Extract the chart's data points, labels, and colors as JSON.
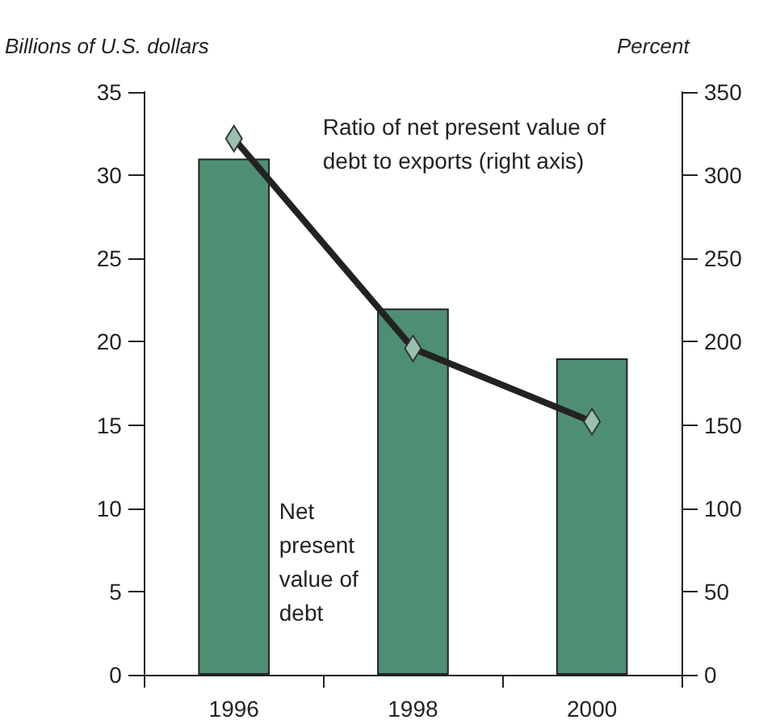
{
  "chart_data": {
    "type": "bar",
    "ylabel": "Billions of U.S. dollars",
    "y2label": "Percent",
    "categories": [
      "1996",
      "1998",
      "2000"
    ],
    "series": [
      {
        "name": "Net present value of debt",
        "color": "#4e8f73",
        "values": [
          31,
          22,
          19
        ]
      },
      {
        "name": "Ratio of net present value of debt to exports (right axis)",
        "type": "line",
        "axis": "y2",
        "color": "#222222",
        "marker": "diamond",
        "values": [
          322,
          196,
          152
        ]
      }
    ],
    "ylim": [
      0,
      35
    ],
    "yticks": [
      0,
      5,
      10,
      15,
      20,
      25,
      30,
      35
    ],
    "y2lim": [
      0,
      350
    ],
    "y2ticks": [
      0,
      50,
      100,
      150,
      200,
      250,
      300,
      350
    ],
    "grid": false,
    "legend": false
  }
}
